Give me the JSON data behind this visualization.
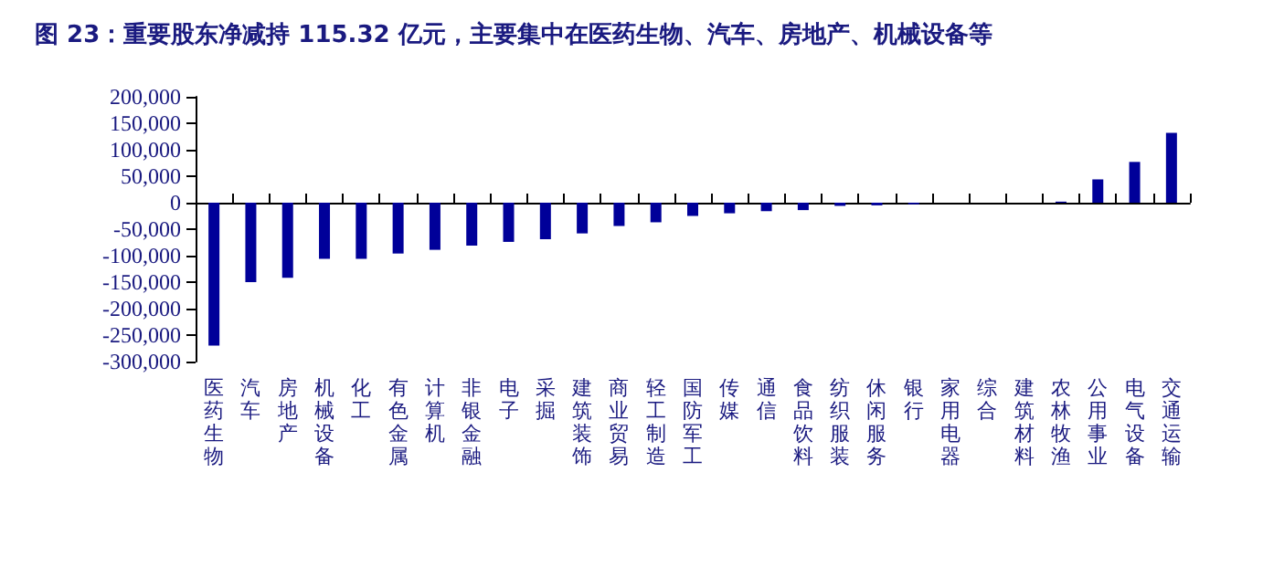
{
  "chart_data": {
    "type": "bar",
    "title": "图 23：重要股东净减持 115.32 亿元，主要集中在医药生物、汽车、房地产、机械设备等",
    "categories": [
      "医药生物",
      "汽车",
      "房地产",
      "机械设备",
      "化工",
      "有色金属",
      "计算机",
      "非银金融",
      "电子",
      "采掘",
      "建筑装饰",
      "商业贸易",
      "轻工制造",
      "国防军工",
      "传媒",
      "通信",
      "食品饮料",
      "纺织服装",
      "休闲服务",
      "银行",
      "家用电器",
      "综合",
      "建筑材料",
      "农林牧渔",
      "公用事业",
      "电气设备",
      "交通运输"
    ],
    "values": [
      -270000,
      -150000,
      -142000,
      -106000,
      -106000,
      -96000,
      -89000,
      -81000,
      -74000,
      -69000,
      -58000,
      -44000,
      -37000,
      -25000,
      -20000,
      -16000,
      -14000,
      -6000,
      -5000,
      -3000,
      0,
      0,
      0,
      2000,
      44000,
      77000,
      132000
    ],
    "color": "#000099",
    "ylim": [
      -300000,
      200000
    ],
    "yticks": [
      {
        "value": -300000,
        "label": "-300,000"
      },
      {
        "value": -250000,
        "label": "-250,000"
      },
      {
        "value": -200000,
        "label": "-200,000"
      },
      {
        "value": -150000,
        "label": "-150,000"
      },
      {
        "value": -100000,
        "label": "-100,000"
      },
      {
        "value": -50000,
        "label": "-50,000"
      },
      {
        "value": 0,
        "label": "0"
      },
      {
        "value": 50000,
        "label": "50,000"
      },
      {
        "value": 100000,
        "label": "100,000"
      },
      {
        "value": 150000,
        "label": "150,000"
      },
      {
        "value": 200000,
        "label": "200,000"
      }
    ]
  }
}
